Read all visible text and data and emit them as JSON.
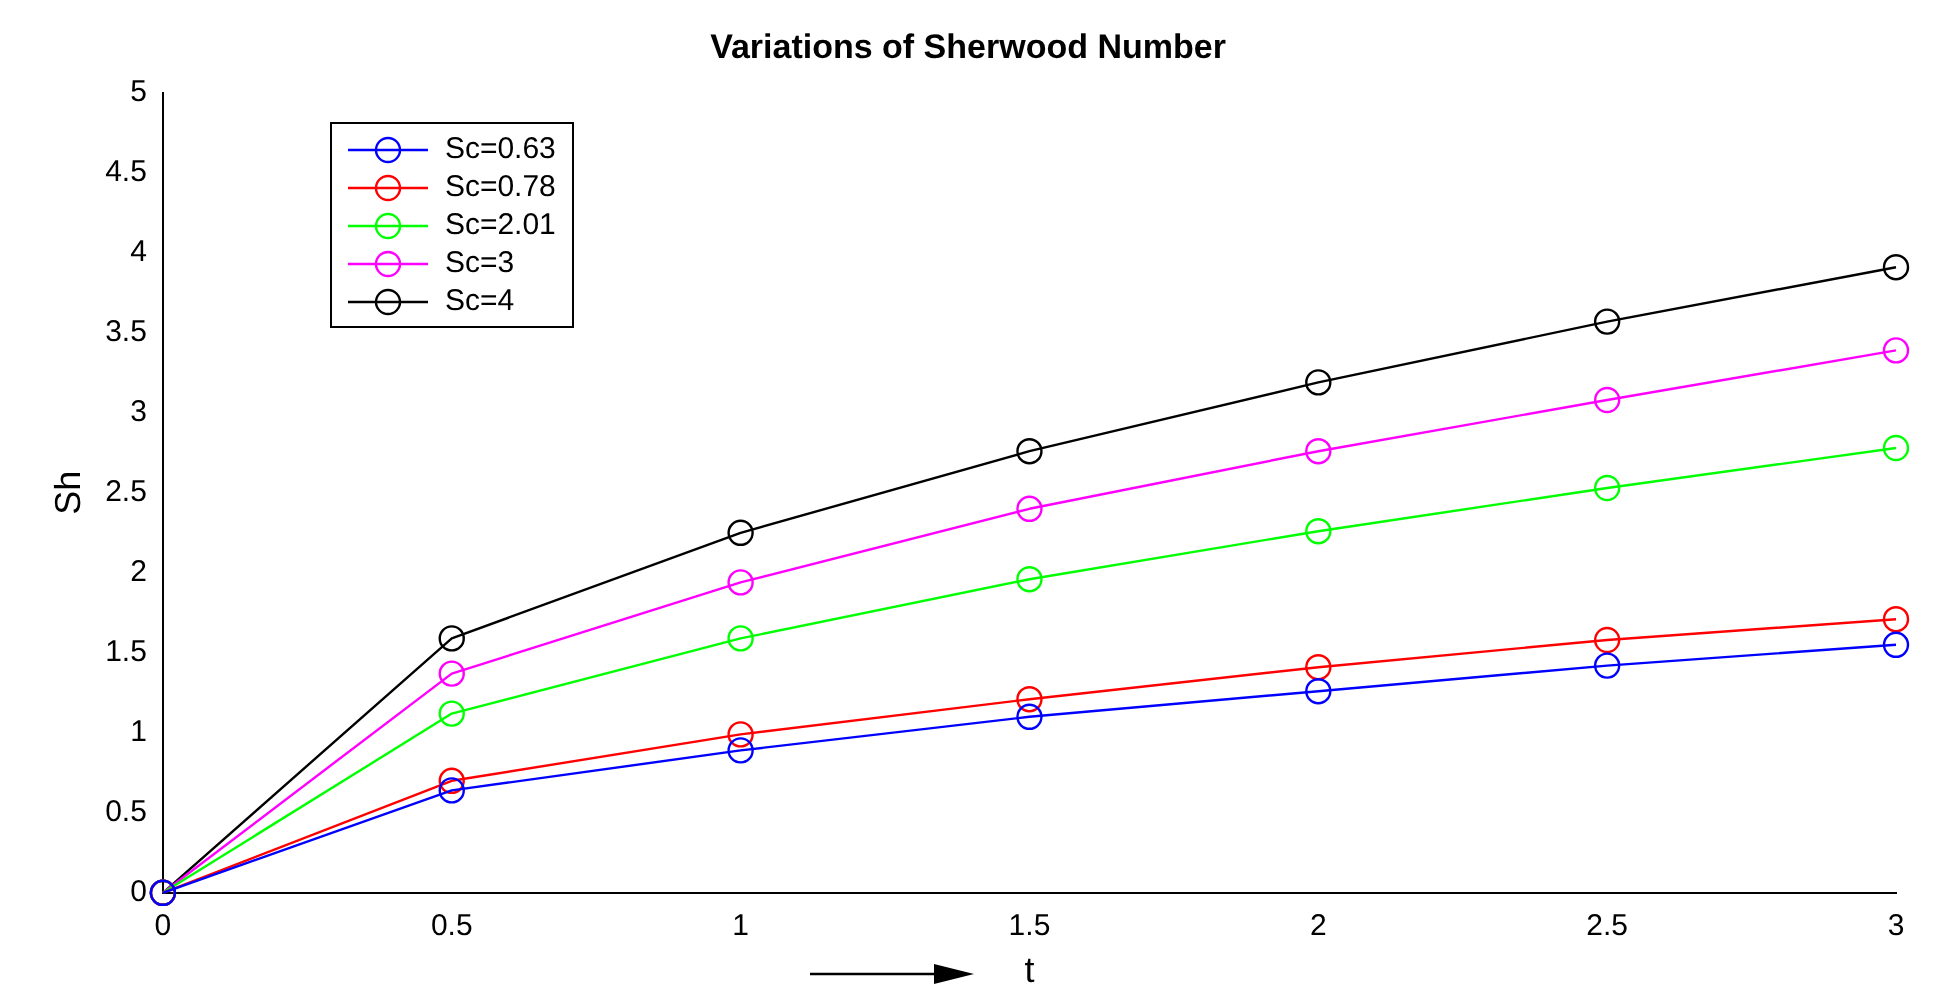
{
  "chart_data": {
    "type": "line",
    "title": "Variations of Sherwood Number",
    "xlabel": "t",
    "ylabel": "Sh",
    "x": [
      0,
      0.5,
      1,
      1.5,
      2,
      2.5,
      3
    ],
    "series": [
      {
        "name": "Sc=0.63",
        "color": "#0000ff",
        "values": [
          0,
          0.64,
          0.89,
          1.1,
          1.26,
          1.42,
          1.55
        ]
      },
      {
        "name": "Sc=0.78",
        "color": "#ff0000",
        "values": [
          0,
          0.7,
          0.99,
          1.21,
          1.41,
          1.58,
          1.71
        ]
      },
      {
        "name": "Sc=2.01",
        "color": "#00ff00",
        "values": [
          0,
          1.12,
          1.59,
          1.96,
          2.26,
          2.53,
          2.78
        ]
      },
      {
        "name": "Sc=3",
        "color": "#ff00ff",
        "values": [
          0,
          1.37,
          1.94,
          2.4,
          2.76,
          3.08,
          3.39
        ]
      },
      {
        "name": "Sc=4",
        "color": "#000000",
        "values": [
          0,
          1.59,
          2.25,
          2.76,
          3.19,
          3.57,
          3.91
        ]
      }
    ],
    "xlim": [
      0,
      3
    ],
    "xticks": [
      0,
      0.5,
      1,
      1.5,
      2,
      2.5,
      3
    ],
    "ylim": [
      0,
      5
    ],
    "yticks": [
      0,
      0.5,
      1,
      1.5,
      2,
      2.5,
      3,
      3.5,
      4,
      4.5,
      5
    ],
    "grid": false,
    "legend": "top left",
    "marker": "circle",
    "line_style": "solid"
  }
}
